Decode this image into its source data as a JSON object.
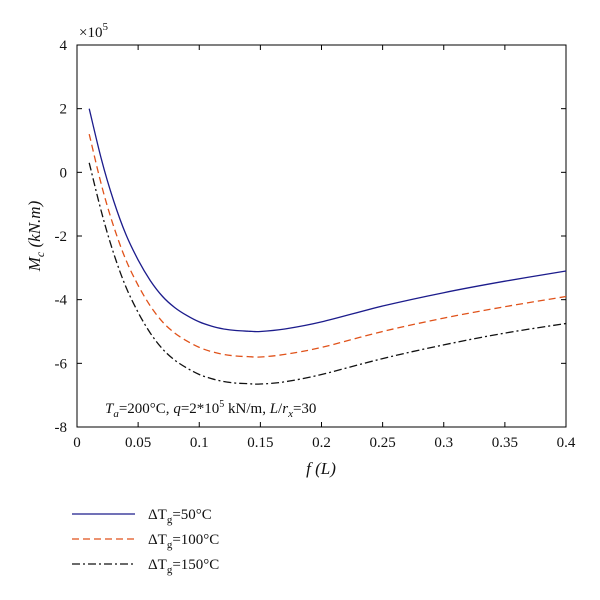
{
  "chart_data": {
    "type": "line",
    "xlabel": "f (L)",
    "ylabel": "M_c (kN.m)",
    "y_multiplier": "×10^5",
    "xlim": [
      0,
      0.4
    ],
    "ylim": [
      -8,
      4
    ],
    "x_ticks": [
      0,
      0.05,
      0.1,
      0.15,
      0.2,
      0.25,
      0.3,
      0.35,
      0.4
    ],
    "x_tick_labels": [
      "0",
      "0.05",
      "0.1",
      "0.15",
      "0.2",
      "0.25",
      "0.3",
      "0.35",
      "0.4"
    ],
    "y_ticks": [
      4,
      2,
      0,
      -2,
      -4,
      -6,
      -8
    ],
    "y_tick_labels": [
      "4",
      "2",
      "0",
      "-2",
      "-4",
      "-6",
      "-8"
    ],
    "grid": false,
    "annotation": "Ta=200°C, q=2*10^5 kN/m, L/rx=30",
    "legend_position": "below",
    "series": [
      {
        "name": "ΔTg=50°C",
        "color": "#1c1c8c",
        "dash": "solid",
        "x": [
          0.01,
          0.02,
          0.03,
          0.04,
          0.05,
          0.06,
          0.07,
          0.08,
          0.09,
          0.1,
          0.11,
          0.12,
          0.13,
          0.14,
          0.15,
          0.17,
          0.2,
          0.25,
          0.3,
          0.35,
          0.4
        ],
        "y": [
          2.0,
          0.4,
          -0.9,
          -1.95,
          -2.75,
          -3.4,
          -3.9,
          -4.25,
          -4.5,
          -4.7,
          -4.83,
          -4.92,
          -4.97,
          -4.99,
          -5.0,
          -4.92,
          -4.7,
          -4.2,
          -3.78,
          -3.42,
          -3.1
        ]
      },
      {
        "name": "ΔTg=100°C",
        "color": "#e0521a",
        "dash": "dashed",
        "x": [
          0.01,
          0.02,
          0.03,
          0.04,
          0.05,
          0.06,
          0.07,
          0.08,
          0.09,
          0.1,
          0.11,
          0.12,
          0.13,
          0.14,
          0.15,
          0.17,
          0.2,
          0.25,
          0.3,
          0.35,
          0.4
        ],
        "y": [
          1.2,
          -0.4,
          -1.7,
          -2.75,
          -3.55,
          -4.2,
          -4.7,
          -5.05,
          -5.3,
          -5.5,
          -5.63,
          -5.72,
          -5.77,
          -5.79,
          -5.8,
          -5.72,
          -5.5,
          -5.0,
          -4.58,
          -4.22,
          -3.9
        ]
      },
      {
        "name": "ΔTg=150°C",
        "color": "#111111",
        "dash": "dashdot",
        "x": [
          0.01,
          0.02,
          0.03,
          0.04,
          0.05,
          0.06,
          0.07,
          0.08,
          0.09,
          0.1,
          0.11,
          0.12,
          0.13,
          0.14,
          0.15,
          0.17,
          0.2,
          0.25,
          0.3,
          0.35,
          0.4
        ],
        "y": [
          0.3,
          -1.25,
          -2.55,
          -3.6,
          -4.4,
          -5.05,
          -5.55,
          -5.9,
          -6.15,
          -6.35,
          -6.48,
          -6.57,
          -6.62,
          -6.64,
          -6.65,
          -6.58,
          -6.35,
          -5.85,
          -5.42,
          -5.05,
          -4.75
        ]
      }
    ]
  }
}
